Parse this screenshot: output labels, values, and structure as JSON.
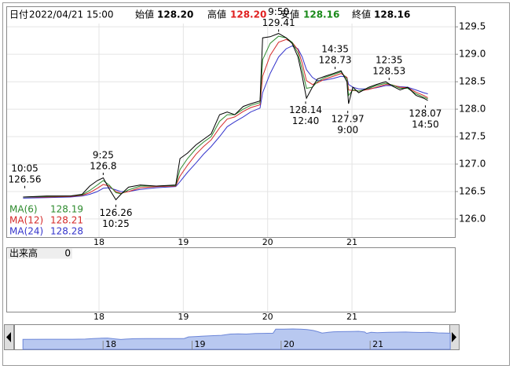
{
  "header": {
    "date_label": "日付",
    "datetime": "2022/04/21 15:00",
    "open_label": "始値",
    "open": "128.20",
    "high_label": "高値",
    "high": "128.20",
    "low_label": "安値",
    "low": "128.16",
    "close_label": "終値",
    "close": "128.16"
  },
  "chart_data": {
    "type": "line",
    "x": [
      17.1,
      17.38,
      17.66,
      17.8,
      17.89,
      17.98,
      18.05,
      18.12,
      18.2,
      18.26,
      18.35,
      18.49,
      18.68,
      18.91,
      18.96,
      19.05,
      19.15,
      19.24,
      19.33,
      19.43,
      19.52,
      19.61,
      19.71,
      19.8,
      19.91,
      19.94,
      20.03,
      20.13,
      20.22,
      20.29,
      20.36,
      20.41,
      20.46,
      20.53,
      20.59,
      20.68,
      20.78,
      20.87,
      20.94,
      20.96,
      21.01,
      21.08,
      21.2,
      21.29,
      21.4,
      21.48,
      21.57,
      21.66,
      21.76,
      21.85,
      21.9
    ],
    "price": {
      "color": "#000000",
      "values": [
        126.4,
        126.42,
        126.42,
        126.45,
        126.6,
        126.7,
        126.75,
        126.55,
        126.35,
        126.45,
        126.58,
        126.62,
        126.6,
        126.62,
        127.1,
        127.2,
        127.35,
        127.45,
        127.55,
        127.9,
        127.95,
        127.9,
        128.05,
        128.1,
        128.15,
        129.3,
        129.32,
        129.38,
        129.3,
        129.2,
        128.95,
        128.6,
        128.2,
        128.4,
        128.55,
        128.6,
        128.65,
        128.7,
        128.5,
        128.1,
        128.4,
        128.3,
        128.4,
        128.45,
        128.5,
        128.42,
        128.35,
        128.4,
        128.25,
        128.2,
        128.16
      ]
    },
    "series": [
      {
        "name": "MA(6)",
        "color": "#2e8b2e",
        "latest": 128.19,
        "values": [
          126.4,
          126.41,
          126.42,
          126.44,
          126.52,
          126.62,
          126.7,
          126.62,
          126.48,
          126.46,
          126.53,
          126.6,
          126.6,
          126.61,
          126.9,
          127.1,
          127.28,
          127.4,
          127.5,
          127.78,
          127.9,
          127.9,
          128.0,
          128.07,
          128.12,
          128.9,
          129.2,
          129.33,
          129.3,
          129.22,
          129.02,
          128.72,
          128.38,
          128.4,
          128.5,
          128.58,
          128.63,
          128.68,
          128.55,
          128.25,
          128.35,
          128.33,
          128.38,
          128.43,
          128.47,
          128.44,
          128.38,
          128.38,
          128.28,
          128.22,
          128.19
        ]
      },
      {
        "name": "MA(12)",
        "color": "#d42a2a",
        "latest": 128.21,
        "values": [
          126.4,
          126.4,
          126.41,
          126.43,
          126.48,
          126.56,
          126.63,
          126.6,
          126.5,
          126.47,
          126.5,
          126.57,
          126.59,
          126.6,
          126.78,
          126.98,
          127.18,
          127.32,
          127.44,
          127.66,
          127.82,
          127.86,
          127.96,
          128.03,
          128.08,
          128.6,
          128.98,
          129.22,
          129.27,
          129.22,
          129.08,
          128.84,
          128.52,
          128.45,
          128.48,
          128.55,
          128.6,
          128.65,
          128.58,
          128.35,
          128.34,
          128.33,
          128.36,
          128.4,
          128.45,
          128.44,
          128.4,
          128.39,
          128.31,
          128.25,
          128.21
        ]
      },
      {
        "name": "MA(24)",
        "color": "#3535cc",
        "latest": 128.28,
        "values": [
          126.38,
          126.39,
          126.4,
          126.42,
          126.45,
          126.5,
          126.56,
          126.57,
          126.53,
          126.5,
          126.5,
          126.54,
          126.57,
          126.59,
          126.68,
          126.85,
          127.02,
          127.18,
          127.32,
          127.5,
          127.68,
          127.77,
          127.86,
          127.95,
          128.02,
          128.3,
          128.65,
          128.95,
          129.1,
          129.15,
          129.1,
          128.95,
          128.72,
          128.58,
          128.52,
          128.53,
          128.56,
          128.6,
          128.58,
          128.45,
          128.4,
          128.37,
          128.37,
          128.39,
          128.43,
          128.43,
          128.41,
          128.4,
          128.35,
          128.3,
          128.28
        ]
      }
    ],
    "xlim": [
      16.91,
      22.22
    ],
    "xticks": [
      18,
      19,
      20,
      21
    ],
    "ylim": [
      125.67,
      129.86
    ],
    "yticks": [
      129.5,
      {
        "value": 129,
        "label": "129.0"
      },
      128.5,
      {
        "value": 128,
        "label": "128.0"
      },
      127.5,
      {
        "value": 127,
        "label": "127.0"
      },
      126.5,
      {
        "value": 126,
        "label": "126.0"
      }
    ],
    "grid": true,
    "annotations": [
      {
        "time": "10:05",
        "price": 126.56,
        "x": 17.12
      },
      {
        "time": "9:25",
        "price": 126.8,
        "x": 18.05
      },
      {
        "time": "10:25",
        "price": 126.26,
        "x": 18.2
      },
      {
        "time": "9:50",
        "price": 129.41,
        "x": 20.13
      },
      {
        "time": "12:40",
        "price": 128.14,
        "x": 20.45
      },
      {
        "time": "14:35",
        "price": 128.73,
        "x": 20.8
      },
      {
        "time": "9:00",
        "price": 127.97,
        "x": 20.95
      },
      {
        "time": "12:35",
        "price": 128.53,
        "x": 21.44
      },
      {
        "time": "14:50",
        "price": 128.07,
        "x": 21.87
      }
    ],
    "volume": {
      "label": "出来高",
      "value": 0
    },
    "navigator": {
      "xlim": [
        17.01,
        21.89
      ],
      "ylim": [
        123.5,
        130.5
      ]
    }
  }
}
